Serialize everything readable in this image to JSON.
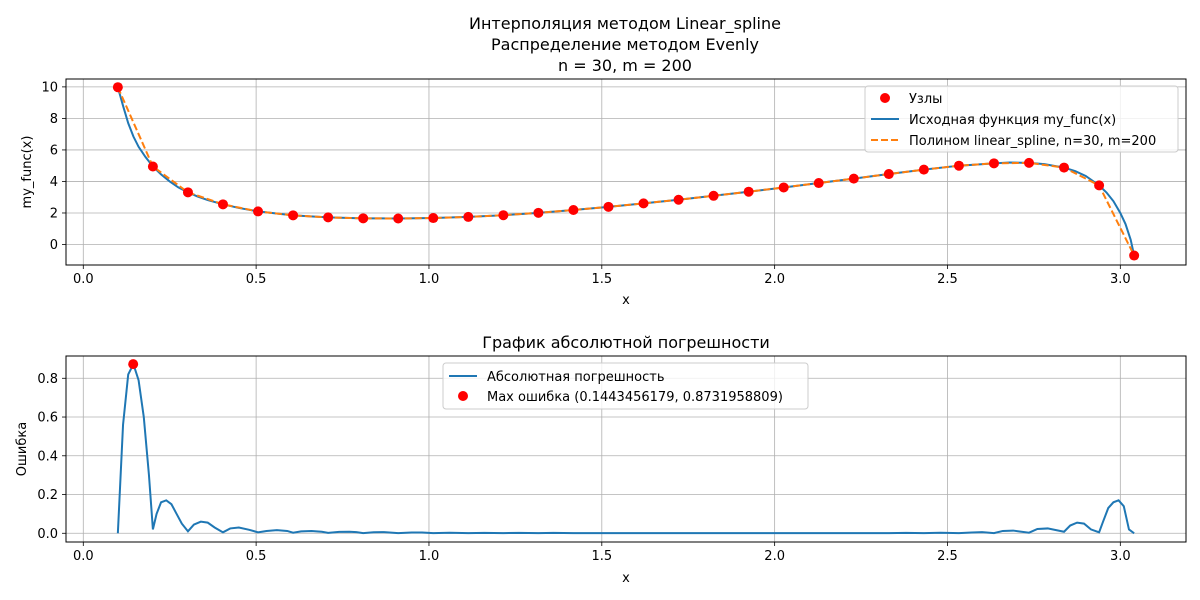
{
  "chart_data": [
    {
      "type": "line",
      "title_lines": [
        "Интерполяция методом Linear_spline",
        "Распределение методом Evenly",
        "n = 30, m = 200"
      ],
      "xlabel": "x",
      "ylabel": "my_func(x)",
      "xlim": [
        -0.05,
        3.19
      ],
      "ylim": [
        -1.3,
        10.5
      ],
      "xticks": [
        "0.0",
        "0.5",
        "1.0",
        "1.5",
        "2.0",
        "2.5",
        "3.0"
      ],
      "yticks": [
        "0",
        "2",
        "4",
        "6",
        "8",
        "10"
      ],
      "grid": true,
      "legend_position": "top-right",
      "legend": [
        "Узлы",
        "Исходная функция my_func(x)",
        "Полином linear_spline, n=30, m=200"
      ],
      "nodes": {
        "name": "Узлы",
        "x": [
          0.1,
          0.2014,
          0.3028,
          0.4041,
          0.5055,
          0.6069,
          0.7083,
          0.8097,
          0.911,
          1.0124,
          1.1138,
          1.2152,
          1.3166,
          1.4179,
          1.5193,
          1.6207,
          1.7221,
          1.8234,
          1.9248,
          2.0262,
          2.1276,
          2.229,
          2.3303,
          2.4317,
          2.5331,
          2.6345,
          2.7359,
          2.8372,
          2.9386,
          3.04
        ],
        "y": [
          9.98,
          4.95,
          3.31,
          2.55,
          2.1,
          1.85,
          1.72,
          1.66,
          1.65,
          1.68,
          1.75,
          1.86,
          2.01,
          2.19,
          2.39,
          2.61,
          2.84,
          3.09,
          3.35,
          3.62,
          3.9,
          4.18,
          4.47,
          4.75,
          5.0,
          5.15,
          5.18,
          4.88,
          3.75,
          -0.7
        ],
        "color": "#ff0000"
      },
      "original": {
        "name": "Исходная функция my_func(x)",
        "color": "#1f77b4",
        "x": [
          0.1,
          0.115,
          0.13,
          0.145,
          0.16,
          0.18,
          0.2014,
          0.225,
          0.25,
          0.275,
          0.3028,
          0.33,
          0.36,
          0.4041,
          0.45,
          0.5055,
          0.6069,
          0.7083,
          0.8097,
          0.911,
          1.0124,
          1.1138,
          1.2152,
          1.3166,
          1.4179,
          1.5193,
          1.6207,
          1.7221,
          1.8234,
          1.9248,
          2.0262,
          2.1276,
          2.229,
          2.3303,
          2.4317,
          2.5331,
          2.6345,
          2.68,
          2.7359,
          2.78,
          2.8372,
          2.87,
          2.9,
          2.9386,
          2.96,
          2.98,
          3.0,
          3.015,
          3.03,
          3.04
        ],
        "y": [
          9.98,
          8.8,
          7.7,
          6.85,
          6.2,
          5.55,
          4.95,
          4.45,
          4.0,
          3.62,
          3.31,
          3.05,
          2.82,
          2.55,
          2.32,
          2.1,
          1.85,
          1.72,
          1.66,
          1.65,
          1.68,
          1.75,
          1.86,
          2.01,
          2.19,
          2.39,
          2.61,
          2.84,
          3.09,
          3.35,
          3.62,
          3.9,
          4.18,
          4.47,
          4.75,
          5.0,
          5.15,
          5.2,
          5.18,
          5.1,
          4.88,
          4.65,
          4.35,
          3.75,
          3.3,
          2.75,
          2.0,
          1.3,
          0.3,
          -0.7
        ]
      },
      "polynomial": {
        "name": "Полином linear_spline, n=30, m=200",
        "color": "#ff7f0e",
        "dashed": true,
        "x": [
          0.1,
          0.2014,
          0.3028,
          0.4041,
          0.5055,
          0.6069,
          0.7083,
          0.8097,
          0.911,
          1.0124,
          1.1138,
          1.2152,
          1.3166,
          1.4179,
          1.5193,
          1.6207,
          1.7221,
          1.8234,
          1.9248,
          2.0262,
          2.1276,
          2.229,
          2.3303,
          2.4317,
          2.5331,
          2.6345,
          2.7359,
          2.8372,
          2.9386,
          3.04
        ],
        "y": [
          9.98,
          4.95,
          3.31,
          2.55,
          2.1,
          1.85,
          1.72,
          1.66,
          1.65,
          1.68,
          1.75,
          1.86,
          2.01,
          2.19,
          2.39,
          2.61,
          2.84,
          3.09,
          3.35,
          3.62,
          3.9,
          4.18,
          4.47,
          4.75,
          5.0,
          5.15,
          5.18,
          4.88,
          3.75,
          -0.7
        ]
      }
    },
    {
      "type": "line",
      "title": "График абсолютной погрешности",
      "xlabel": "x",
      "ylabel": "Ошибка",
      "xlim": [
        -0.05,
        3.19
      ],
      "ylim": [
        -0.045,
        0.915
      ],
      "xticks": [
        "0.0",
        "0.5",
        "1.0",
        "1.5",
        "2.0",
        "2.5",
        "3.0"
      ],
      "yticks": [
        "0.0",
        "0.2",
        "0.4",
        "0.6",
        "0.8"
      ],
      "grid": true,
      "legend_position": "top-center",
      "legend": [
        "Абсолютная погрешность",
        "Max ошибка (0.1443456179, 0.8731958809)"
      ],
      "error": {
        "name": "Абсолютная погрешность",
        "color": "#1f77b4",
        "x": [
          0.1,
          0.115,
          0.13,
          0.145,
          0.16,
          0.175,
          0.19,
          0.2014,
          0.212,
          0.225,
          0.24,
          0.255,
          0.27,
          0.285,
          0.3028,
          0.32,
          0.34,
          0.36,
          0.38,
          0.4041,
          0.425,
          0.45,
          0.48,
          0.5055,
          0.53,
          0.56,
          0.59,
          0.6069,
          0.63,
          0.66,
          0.69,
          0.7083,
          0.74,
          0.77,
          0.79,
          0.8097,
          0.84,
          0.87,
          0.911,
          0.95,
          0.98,
          1.0124,
          1.06,
          1.1138,
          1.16,
          1.2152,
          1.26,
          1.3166,
          1.36,
          1.4179,
          1.46,
          1.5193,
          1.56,
          1.6207,
          1.66,
          1.7221,
          1.76,
          1.8234,
          1.86,
          1.9248,
          1.96,
          2.0262,
          2.07,
          2.1276,
          2.17,
          2.229,
          2.27,
          2.3303,
          2.38,
          2.4317,
          2.48,
          2.5331,
          2.57,
          2.6,
          2.6345,
          2.66,
          2.69,
          2.7359,
          2.76,
          2.79,
          2.8372,
          2.855,
          2.875,
          2.895,
          2.915,
          2.9386,
          2.95,
          2.965,
          2.98,
          2.995,
          3.01,
          3.025,
          3.04
        ],
        "y": [
          0.0,
          0.56,
          0.82,
          0.873,
          0.79,
          0.6,
          0.3,
          0.02,
          0.1,
          0.16,
          0.17,
          0.15,
          0.1,
          0.05,
          0.01,
          0.045,
          0.06,
          0.055,
          0.03,
          0.005,
          0.025,
          0.03,
          0.018,
          0.005,
          0.012,
          0.016,
          0.012,
          0.003,
          0.01,
          0.012,
          0.008,
          0.002,
          0.007,
          0.008,
          0.006,
          0.001,
          0.005,
          0.006,
          0.001,
          0.004,
          0.004,
          0.001,
          0.003,
          0.001,
          0.002,
          0.001,
          0.002,
          0.001,
          0.002,
          0.001,
          0.001,
          0.001,
          0.001,
          0.001,
          0.001,
          0.001,
          0.001,
          0.001,
          0.001,
          0.001,
          0.001,
          0.001,
          0.001,
          0.001,
          0.001,
          0.001,
          0.001,
          0.001,
          0.002,
          0.001,
          0.003,
          0.001,
          0.004,
          0.006,
          0.001,
          0.012,
          0.014,
          0.003,
          0.022,
          0.025,
          0.008,
          0.04,
          0.055,
          0.05,
          0.02,
          0.005,
          0.06,
          0.13,
          0.16,
          0.17,
          0.14,
          0.02,
          0.0
        ]
      },
      "max_error": {
        "name": "Max ошибка (0.1443456179, 0.8731958809)",
        "x": 0.1443456179,
        "y": 0.8731958809,
        "color": "#ff0000"
      }
    }
  ]
}
